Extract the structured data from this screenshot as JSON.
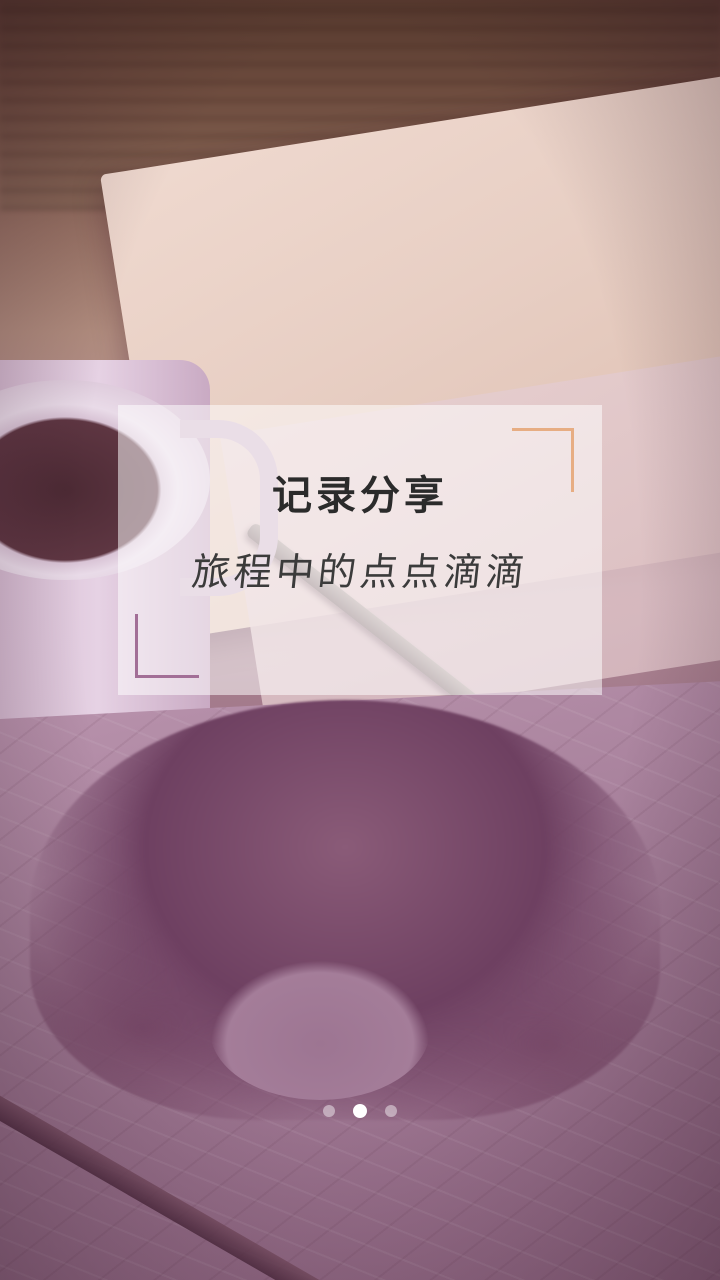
{
  "splash": {
    "title": "记录分享",
    "subtitle": "旅程中的点点滴滴",
    "accent_color_top_right": "#e7ad83",
    "accent_color_bottom_left": "#a26e96"
  },
  "pager": {
    "page_count": 3,
    "active_index": 1
  }
}
